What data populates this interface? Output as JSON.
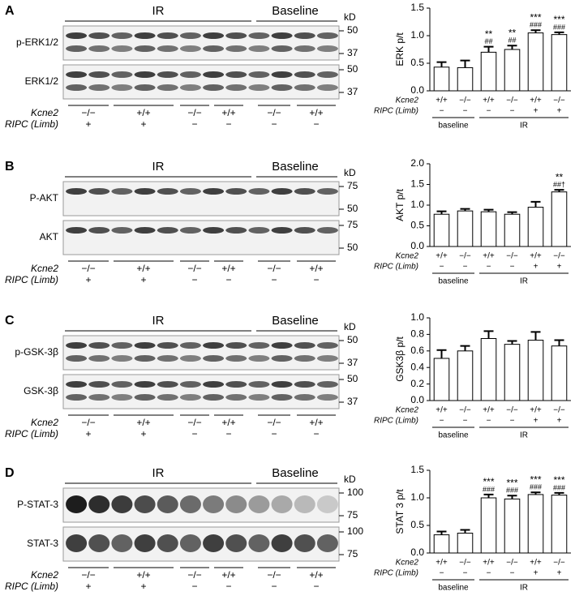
{
  "chart_data": [
    {
      "type": "bar",
      "panel": "A",
      "ylabel": "ERK p/t",
      "ylim": [
        0,
        1.5
      ],
      "yticks": [
        {
          "value": 0,
          "label": "0.0"
        },
        0.5,
        {
          "value": 1,
          "label": "1.0"
        },
        1.5
      ],
      "row_labels": [
        "Kcne2",
        "RIPC (Limb)"
      ],
      "kcne2": [
        "+/+",
        "−/−",
        "+/+",
        "−/−",
        "+/+",
        "−/−"
      ],
      "ripc": [
        "−",
        "−",
        "−",
        "−",
        "+",
        "+"
      ],
      "groups": [
        "baseline",
        "IR"
      ],
      "values": [
        0.43,
        0.42,
        0.7,
        0.75,
        1.05,
        1.02
      ],
      "errors": [
        0.09,
        0.13,
        0.1,
        0.07,
        0.05,
        0.04
      ],
      "stars": [
        null,
        null,
        "**",
        "**",
        "***",
        "***"
      ],
      "hashes": [
        null,
        null,
        "##",
        "##",
        "###",
        "###"
      ]
    },
    {
      "type": "bar",
      "panel": "B",
      "ylabel": "AKT p/t",
      "ylim": [
        0,
        2
      ],
      "yticks": [
        {
          "value": 0,
          "label": "0.0"
        },
        0.5,
        {
          "value": 1,
          "label": "1.0"
        },
        1.5,
        {
          "value": 2,
          "label": "2.0"
        }
      ],
      "row_labels": [
        "Kcne2",
        "RIPC (Limb)"
      ],
      "kcne2": [
        "+/+",
        "−/−",
        "+/+",
        "−/−",
        "+/+",
        "−/−"
      ],
      "ripc": [
        "−",
        "−",
        "−",
        "−",
        "+",
        "+"
      ],
      "groups": [
        "baseline",
        "IR"
      ],
      "values": [
        0.78,
        0.86,
        0.84,
        0.78,
        0.95,
        1.32
      ],
      "errors": [
        0.07,
        0.05,
        0.05,
        0.05,
        0.13,
        0.05
      ],
      "stars": [
        null,
        null,
        null,
        null,
        null,
        "**"
      ],
      "hashes": [
        null,
        null,
        null,
        null,
        null,
        "##†"
      ]
    },
    {
      "type": "bar",
      "panel": "C",
      "ylabel": "GSK3β p/t",
      "ylim": [
        0,
        1
      ],
      "yticks": [
        {
          "value": 0,
          "label": "0.0"
        },
        0.2,
        0.4,
        0.6,
        0.8,
        {
          "value": 1,
          "label": "1.0"
        }
      ],
      "row_labels": [
        "Kcne2",
        "RIPC (Limb)"
      ],
      "kcne2": [
        "+/+",
        "−/−",
        "+/+",
        "−/−",
        "+/+",
        "−/−"
      ],
      "ripc": [
        "−",
        "−",
        "−",
        "−",
        "+",
        "+"
      ],
      "groups": [
        "baseline",
        "IR"
      ],
      "values": [
        0.51,
        0.6,
        0.75,
        0.68,
        0.73,
        0.66
      ],
      "errors": [
        0.1,
        0.06,
        0.09,
        0.04,
        0.1,
        0.07
      ],
      "stars": [
        null,
        null,
        null,
        null,
        null,
        null
      ],
      "hashes": [
        null,
        null,
        null,
        null,
        null,
        null
      ]
    },
    {
      "type": "bar",
      "panel": "D",
      "ylabel": "STAT 3 p/t",
      "ylim": [
        0,
        1.5
      ],
      "yticks": [
        {
          "value": 0,
          "label": "0.0"
        },
        0.5,
        {
          "value": 1,
          "label": "1.0"
        },
        1.5
      ],
      "row_labels": [
        "Kcne2",
        "RIPC (Limb)"
      ],
      "kcne2": [
        "+/+",
        "−/−",
        "+/+",
        "−/−",
        "+/+",
        "−/−"
      ],
      "ripc": [
        "−",
        "−",
        "−",
        "−",
        "+",
        "+"
      ],
      "groups": [
        "baseline",
        "IR"
      ],
      "values": [
        0.33,
        0.36,
        1.0,
        0.98,
        1.06,
        1.05
      ],
      "errors": [
        0.06,
        0.06,
        0.06,
        0.06,
        0.04,
        0.04
      ],
      "stars": [
        null,
        null,
        "***",
        "***",
        "***",
        "***"
      ],
      "hashes": [
        null,
        null,
        "###",
        "###",
        "###",
        "###"
      ]
    }
  ],
  "blots": [
    {
      "groups": [
        "IR",
        "Baseline"
      ],
      "unit": "kD",
      "rows": [
        {
          "name": "p-ERK1/2",
          "markers": [
            50,
            37
          ]
        },
        {
          "name": "ERK1/2",
          "markers": [
            50,
            37
          ]
        }
      ],
      "row_labels": [
        "Kcne2",
        "RIPC (Limb)"
      ],
      "kcne2": [
        "−/−",
        "+/+",
        "−/−",
        "+/+",
        "−/−",
        "+/+"
      ],
      "ripc": [
        "+",
        "+",
        "−",
        "−",
        "−",
        "−"
      ]
    },
    {
      "groups": [
        "IR",
        "Baseline"
      ],
      "unit": "kD",
      "rows": [
        {
          "name": "P-AKT",
          "markers": [
            75,
            50
          ]
        },
        {
          "name": "AKT",
          "markers": [
            75,
            50
          ]
        }
      ],
      "row_labels": [
        "Kcne2",
        "RIPC (Limb)"
      ],
      "kcne2": [
        "−/−",
        "+/+",
        "−/−",
        "+/+",
        "−/−",
        "+/+"
      ],
      "ripc": [
        "+",
        "+",
        "−",
        "−",
        "−",
        "−"
      ]
    },
    {
      "groups": [
        "IR",
        "Baseline"
      ],
      "unit": "kD",
      "rows": [
        {
          "name": "p-GSK-3β",
          "markers": [
            50,
            37
          ]
        },
        {
          "name": "GSK-3β",
          "markers": [
            50,
            37
          ]
        }
      ],
      "row_labels": [
        "Kcne2",
        "RIPC (Limb)"
      ],
      "kcne2": [
        "−/−",
        "+/+",
        "−/−",
        "+/+",
        "−/−",
        "+/+"
      ],
      "ripc": [
        "+",
        "+",
        "−",
        "−",
        "−",
        "−"
      ]
    },
    {
      "groups": [
        "IR",
        "Baseline"
      ],
      "unit": "kD",
      "rows": [
        {
          "name": "P-STAT-3",
          "markers": [
            100,
            75
          ]
        },
        {
          "name": "STAT-3",
          "markers": [
            100,
            75
          ]
        }
      ],
      "row_labels": [
        "Kcne2",
        "RIPC (Limb)"
      ],
      "kcne2": [
        "−/−",
        "+/+",
        "−/−",
        "+/+",
        "−/−",
        "+/+"
      ],
      "ripc": [
        "+",
        "+",
        "−",
        "−",
        "−",
        "−"
      ]
    }
  ]
}
